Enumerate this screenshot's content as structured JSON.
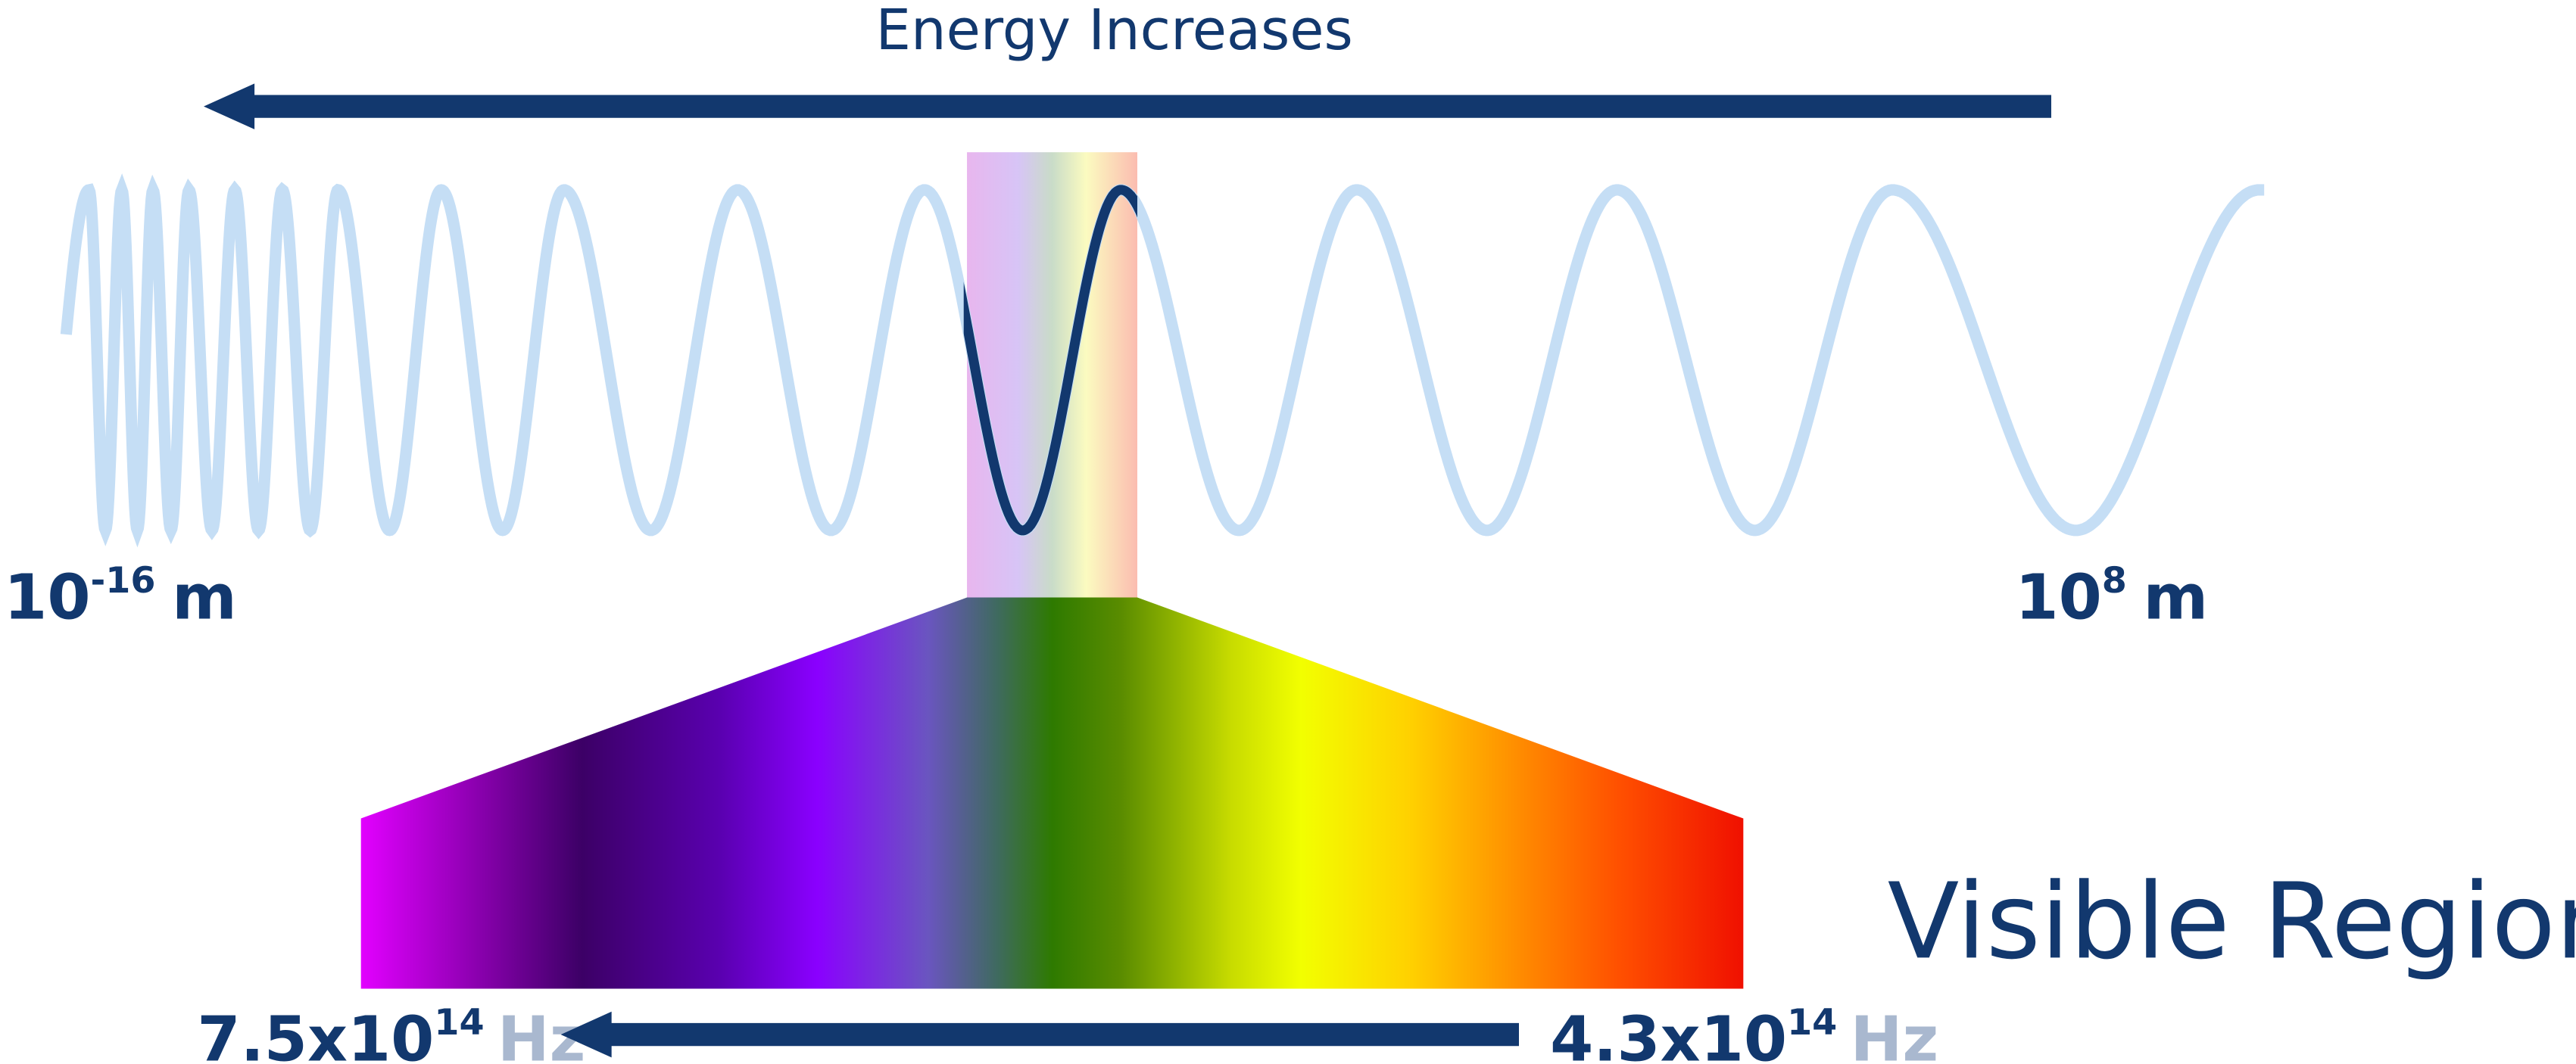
{
  "header": {
    "title": "Energy Increases"
  },
  "wavelength_range": {
    "short": {
      "base": "10",
      "exponent": "-16",
      "unit": "m"
    },
    "long": {
      "base": "10",
      "exponent": "8",
      "unit": "m"
    }
  },
  "visible_region": {
    "label": "Visible Region",
    "high_frequency": {
      "mantissa": "7.5x10",
      "exponent": "14",
      "unit": "Hz"
    },
    "low_frequency": {
      "mantissa": "4.3x10",
      "exponent": "14",
      "unit": "Hz"
    }
  }
}
